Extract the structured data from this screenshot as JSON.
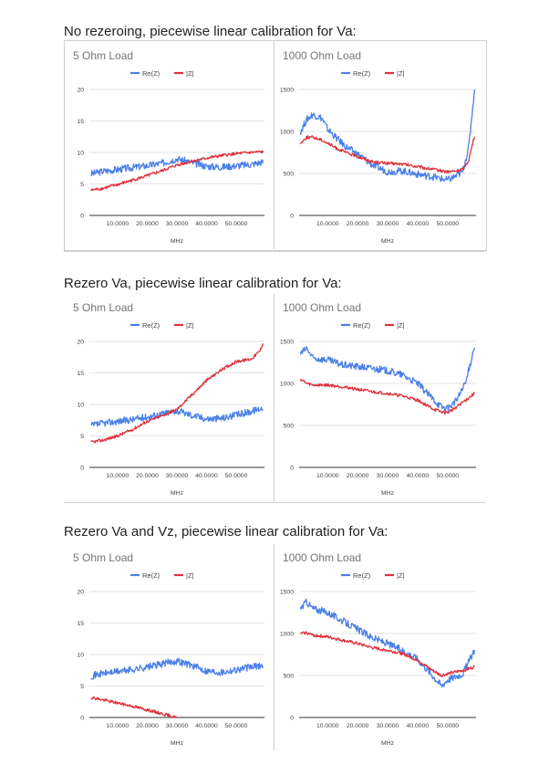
{
  "sections": [
    {
      "title": "No rezeroing, piecewise linear calibration for Va:"
    },
    {
      "title": "Rezero Va, piecewise linear calibration for Va:"
    },
    {
      "title": "Rezero Va and Vz, piecewise linear calibration for Va:"
    }
  ],
  "colors": {
    "rez": "#4a80e8",
    "absz": "#e0303a",
    "grid": "#e3e3e3",
    "axis": "#555555"
  },
  "chart_data": [
    {
      "type": "line",
      "title": "5 Ohm Load",
      "xlabel": "MHz",
      "ylabel": "",
      "xlim": [
        0.5,
        59.5
      ],
      "ylim": [
        0,
        20
      ],
      "yticks": [
        0,
        5,
        10,
        15,
        20
      ],
      "xticks": [
        10,
        20,
        30,
        40,
        50
      ],
      "xtick_labels": [
        "10.0000",
        "20.0000",
        "30.0000",
        "40.0000",
        "50.0000"
      ],
      "legend": "top-center",
      "grid": true,
      "series": [
        {
          "name": "Re(Z)",
          "x": [
            1,
            5,
            10,
            15,
            20,
            25,
            30,
            35,
            40,
            45,
            50,
            55,
            59
          ],
          "values": [
            6.6,
            7.0,
            7.3,
            7.6,
            7.9,
            8.3,
            9.0,
            8.4,
            7.8,
            7.7,
            7.9,
            8.1,
            8.5
          ]
        },
        {
          "name": "|Z|",
          "x": [
            1,
            5,
            10,
            15,
            20,
            25,
            30,
            35,
            40,
            45,
            50,
            55,
            59
          ],
          "values": [
            4.0,
            4.3,
            4.9,
            5.6,
            6.3,
            7.1,
            8.0,
            8.6,
            9.1,
            9.5,
            9.8,
            10.0,
            10.1
          ]
        }
      ]
    },
    {
      "type": "line",
      "title": "1000 Ohm Load",
      "xlabel": "MHz",
      "ylabel": "",
      "xlim": [
        0.5,
        59.5
      ],
      "ylim": [
        0,
        1500
      ],
      "yticks": [
        0,
        500,
        1000,
        1500
      ],
      "xticks": [
        10,
        20,
        30,
        40,
        50
      ],
      "xtick_labels": [
        "10.0000",
        "20.0000",
        "30.0000",
        "40.0000",
        "50.0000"
      ],
      "legend": "top-center",
      "grid": true,
      "series": [
        {
          "name": "Re(Z)",
          "x": [
            1,
            3,
            5,
            8,
            10,
            13,
            16,
            20,
            25,
            30,
            35,
            40,
            45,
            50,
            53,
            55,
            57,
            59
          ],
          "values": [
            1000,
            1140,
            1200,
            1160,
            1030,
            920,
            820,
            730,
            600,
            520,
            530,
            490,
            460,
            420,
            470,
            520,
            800,
            1500
          ]
        },
        {
          "name": "|Z|",
          "x": [
            1,
            3,
            5,
            8,
            10,
            13,
            16,
            20,
            25,
            30,
            35,
            40,
            45,
            50,
            53,
            55,
            57,
            59
          ],
          "values": [
            860,
            930,
            930,
            900,
            860,
            800,
            750,
            700,
            640,
            620,
            610,
            580,
            550,
            520,
            530,
            550,
            650,
            950
          ]
        }
      ]
    },
    {
      "type": "line",
      "title": "5 Ohm Load",
      "xlabel": "MHz",
      "ylabel": "",
      "xlim": [
        0.5,
        59.5
      ],
      "ylim": [
        0,
        20
      ],
      "yticks": [
        0,
        5,
        10,
        15,
        20
      ],
      "xticks": [
        10,
        20,
        30,
        40,
        50
      ],
      "xtick_labels": [
        "10.0000",
        "20.0000",
        "30.0000",
        "40.0000",
        "50.0000"
      ],
      "legend": "top-center",
      "grid": true,
      "series": [
        {
          "name": "Re(Z)",
          "x": [
            1,
            5,
            10,
            15,
            20,
            25,
            30,
            35,
            40,
            45,
            50,
            55,
            59
          ],
          "values": [
            6.6,
            7.0,
            7.3,
            7.6,
            8.0,
            8.5,
            9.0,
            8.3,
            7.7,
            7.8,
            8.3,
            8.9,
            9.5
          ]
        },
        {
          "name": "|Z|",
          "x": [
            1,
            5,
            10,
            15,
            20,
            25,
            30,
            35,
            40,
            45,
            50,
            55,
            58,
            59
          ],
          "values": [
            4.0,
            4.3,
            5.0,
            6.0,
            7.3,
            8.2,
            9.2,
            11.5,
            13.8,
            15.5,
            16.8,
            17.2,
            18.5,
            19.8
          ]
        }
      ]
    },
    {
      "type": "line",
      "title": "1000 Ohm Load",
      "xlabel": "MHz",
      "ylabel": "",
      "xlim": [
        0.5,
        59.5
      ],
      "ylim": [
        0,
        1500
      ],
      "yticks": [
        0,
        500,
        1000,
        1500
      ],
      "xticks": [
        10,
        20,
        30,
        40,
        50
      ],
      "xtick_labels": [
        "10.0000",
        "20.0000",
        "30.0000",
        "40.0000",
        "50.0000"
      ],
      "legend": "top-center",
      "grid": true,
      "series": [
        {
          "name": "Re(Z)",
          "x": [
            1,
            3,
            5,
            10,
            15,
            20,
            25,
            30,
            35,
            40,
            45,
            48,
            50,
            53,
            56,
            59
          ],
          "values": [
            1350,
            1420,
            1300,
            1280,
            1220,
            1200,
            1180,
            1150,
            1100,
            1000,
            820,
            720,
            700,
            800,
            1000,
            1450
          ]
        },
        {
          "name": "|Z|",
          "x": [
            1,
            3,
            5,
            10,
            15,
            20,
            25,
            30,
            35,
            40,
            45,
            48,
            50,
            53,
            56,
            59
          ],
          "values": [
            1050,
            1000,
            980,
            980,
            960,
            930,
            900,
            880,
            850,
            800,
            700,
            660,
            650,
            720,
            800,
            880
          ]
        }
      ]
    },
    {
      "type": "line",
      "title": "5 Ohm Load",
      "xlabel": "MHz",
      "ylabel": "",
      "xlim": [
        0.5,
        59.5
      ],
      "ylim": [
        0,
        20
      ],
      "yticks": [
        0,
        5,
        10,
        15,
        20
      ],
      "xticks": [
        10,
        20,
        30,
        40,
        50
      ],
      "xtick_labels": [
        "10.0000",
        "20.0000",
        "30.0000",
        "40.0000",
        "50.0000"
      ],
      "legend": "top-center",
      "grid": true,
      "series": [
        {
          "name": "Re(Z)",
          "x": [
            1,
            5,
            10,
            15,
            20,
            25,
            30,
            35,
            40,
            45,
            50,
            55,
            59
          ],
          "values": [
            6.6,
            7.0,
            7.3,
            7.6,
            8.0,
            8.5,
            9.0,
            8.3,
            7.4,
            7.2,
            7.6,
            8.0,
            8.3
          ]
        },
        {
          "name": "|Z|",
          "x": [
            1,
            5,
            10,
            15,
            20,
            25,
            30
          ],
          "values": [
            3.2,
            2.8,
            2.3,
            1.8,
            1.2,
            0.6,
            0.0
          ]
        }
      ]
    },
    {
      "type": "line",
      "title": "1000 Ohm Load",
      "xlabel": "MHz",
      "ylabel": "",
      "xlim": [
        0.5,
        59.5
      ],
      "ylim": [
        0,
        1500
      ],
      "yticks": [
        0,
        500,
        1000,
        1500
      ],
      "xticks": [
        10,
        20,
        30,
        40,
        50
      ],
      "xtick_labels": [
        "10.0000",
        "20.0000",
        "30.0000",
        "40.0000",
        "50.0000"
      ],
      "legend": "top-center",
      "grid": true,
      "series": [
        {
          "name": "Re(Z)",
          "x": [
            1,
            3,
            5,
            10,
            15,
            20,
            25,
            30,
            35,
            40,
            45,
            48,
            50,
            55,
            59
          ],
          "values": [
            1300,
            1380,
            1300,
            1250,
            1150,
            1050,
            950,
            880,
            800,
            700,
            500,
            380,
            450,
            520,
            800
          ]
        },
        {
          "name": "|Z|",
          "x": [
            1,
            3,
            5,
            10,
            15,
            20,
            25,
            30,
            35,
            40,
            45,
            48,
            50,
            55,
            59
          ],
          "values": [
            1000,
            1010,
            980,
            960,
            920,
            880,
            830,
            800,
            760,
            680,
            560,
            500,
            520,
            560,
            600
          ]
        }
      ]
    }
  ]
}
